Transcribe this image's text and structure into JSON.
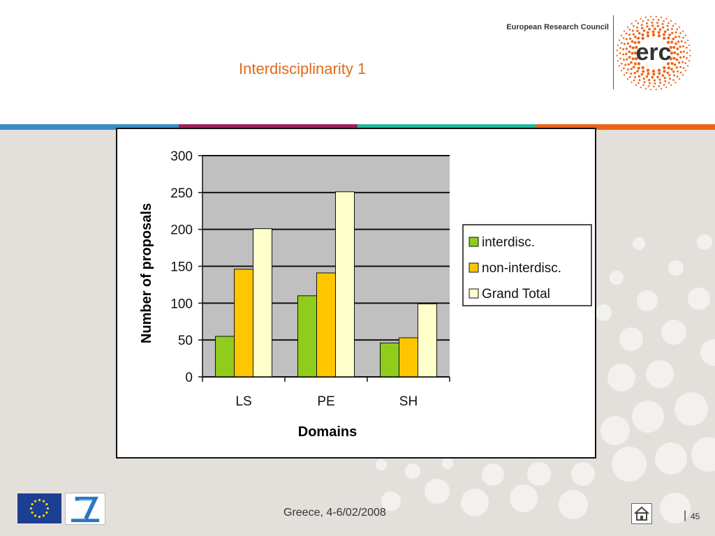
{
  "slide": {
    "title": "Interdisciplinarity 1",
    "org_name": "European Research Council",
    "logo_text": "erc",
    "footer": "Greece, 4-6/02/2008",
    "page_separator": "|",
    "page_number": "45",
    "stripe_colors": [
      "#3a8cc8",
      "#a3205a",
      "#1fb89a",
      "#ee6417"
    ],
    "title_color": "#e06a1b",
    "logo_color": "#ee6417"
  },
  "chart_data": {
    "type": "bar",
    "categories": [
      "LS",
      "PE",
      "SH"
    ],
    "series": [
      {
        "name": "interdisc.",
        "color": "#8fcc1c",
        "values": [
          55,
          110,
          46
        ]
      },
      {
        "name": "non-interdisc.",
        "color": "#ffc600",
        "values": [
          146,
          141,
          53
        ]
      },
      {
        "name": "Grand Total",
        "color": "#ffffcc",
        "values": [
          201,
          251,
          99
        ]
      }
    ],
    "xlabel": "Domains",
    "ylabel": "Number of proposals",
    "ylim": [
      0,
      300
    ],
    "yticks": [
      0,
      50,
      100,
      150,
      200,
      250,
      300
    ],
    "plot_background": "#c0c0c0",
    "grid": true,
    "legend_position": "right"
  }
}
